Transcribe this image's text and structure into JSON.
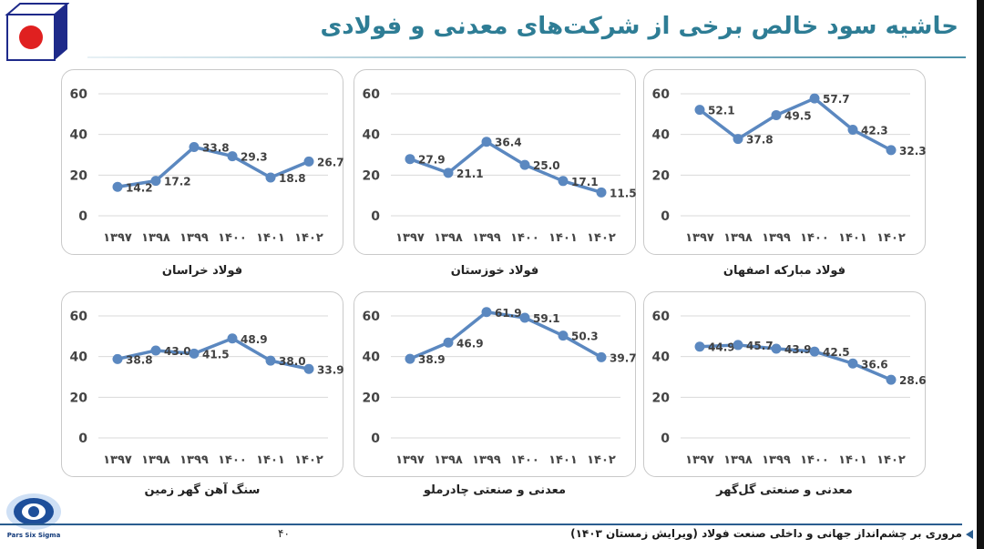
{
  "page": {
    "title": "حاشیه سود خالص برخی از شرکت‌های معدنی و فولادی",
    "footer": "مروری بر چشم‌انداز جهانی و داخلی صنعت فولاد (ویرایش زمستان ۱۴۰۳)",
    "page_number": "۴۰",
    "logo_text": "Pars Six Sigma"
  },
  "colors": {
    "line": "#5b88c0",
    "title": "#2e7d95",
    "grid": "#d9d9d9"
  },
  "chart_data": [
    {
      "type": "line",
      "title": "فولاد مبارکه اصفهان",
      "categories": [
        "۱۳۹۷",
        "۱۳۹۸",
        "۱۳۹۹",
        "۱۴۰۰",
        "۱۴۰۱",
        "۱۴۰۲"
      ],
      "values": [
        52.1,
        37.8,
        49.5,
        57.7,
        42.3,
        32.3
      ],
      "labels": [
        "52.1",
        "37.8",
        "49.5",
        "57.7",
        "42.3",
        "32.3"
      ],
      "yticks": [
        "0",
        "20",
        "40",
        "60"
      ],
      "ylim": [
        0,
        60
      ],
      "grid": true
    },
    {
      "type": "line",
      "title": "فولاد خوزستان",
      "categories": [
        "۱۳۹۷",
        "۱۳۹۸",
        "۱۳۹۹",
        "۱۴۰۰",
        "۱۴۰۱",
        "۱۴۰۲"
      ],
      "values": [
        27.9,
        21.1,
        36.4,
        25.0,
        17.1,
        11.5
      ],
      "labels": [
        "27.9",
        "21.1",
        "36.4",
        "25.0",
        "17.1",
        "11.5"
      ],
      "yticks": [
        "0",
        "20",
        "40",
        "60"
      ],
      "ylim": [
        0,
        60
      ],
      "grid": true
    },
    {
      "type": "line",
      "title": "فولاد خراسان",
      "categories": [
        "۱۳۹۷",
        "۱۳۹۸",
        "۱۳۹۹",
        "۱۴۰۰",
        "۱۴۰۱",
        "۱۴۰۲"
      ],
      "values": [
        14.2,
        17.2,
        33.8,
        29.3,
        18.8,
        26.7
      ],
      "labels": [
        "14.2",
        "17.2",
        "33.8",
        "29.3",
        "18.8",
        "26.7"
      ],
      "yticks": [
        "0",
        "20",
        "40",
        "60"
      ],
      "ylim": [
        0,
        60
      ],
      "grid": true
    },
    {
      "type": "line",
      "title": "معدنی و صنعتی گل‌گهر",
      "categories": [
        "۱۳۹۷",
        "۱۳۹۸",
        "۱۳۹۹",
        "۱۴۰۰",
        "۱۴۰۱",
        "۱۴۰۲"
      ],
      "values": [
        44.9,
        45.7,
        43.9,
        42.5,
        36.6,
        28.6
      ],
      "labels": [
        "44.9",
        "45.7",
        "43.9",
        "42.5",
        "36.6",
        "28.6"
      ],
      "yticks": [
        "0",
        "20",
        "40",
        "60"
      ],
      "ylim": [
        0,
        60
      ],
      "grid": true
    },
    {
      "type": "line",
      "title": "معدنی و صنعتی چادرملو",
      "categories": [
        "۱۳۹۷",
        "۱۳۹۸",
        "۱۳۹۹",
        "۱۴۰۰",
        "۱۴۰۱",
        "۱۴۰۲"
      ],
      "values": [
        38.9,
        46.9,
        61.9,
        59.1,
        50.3,
        39.7
      ],
      "labels": [
        "38.9",
        "46.9",
        "61.9",
        "59.1",
        "50.3",
        "39.7"
      ],
      "yticks": [
        "0",
        "20",
        "40",
        "60"
      ],
      "ylim": [
        0,
        60
      ],
      "grid": true
    },
    {
      "type": "line",
      "title": "سنگ آهن گهر زمین",
      "categories": [
        "۱۳۹۷",
        "۱۳۹۸",
        "۱۳۹۹",
        "۱۴۰۰",
        "۱۴۰۱",
        "۱۴۰۲"
      ],
      "values": [
        38.8,
        43.0,
        41.5,
        48.9,
        38.0,
        33.9
      ],
      "labels": [
        "38.8",
        "43.0",
        "41.5",
        "48.9",
        "38.0",
        "33.9"
      ],
      "yticks": [
        "0",
        "20",
        "40",
        "60"
      ],
      "ylim": [
        0,
        60
      ],
      "grid": true
    }
  ]
}
